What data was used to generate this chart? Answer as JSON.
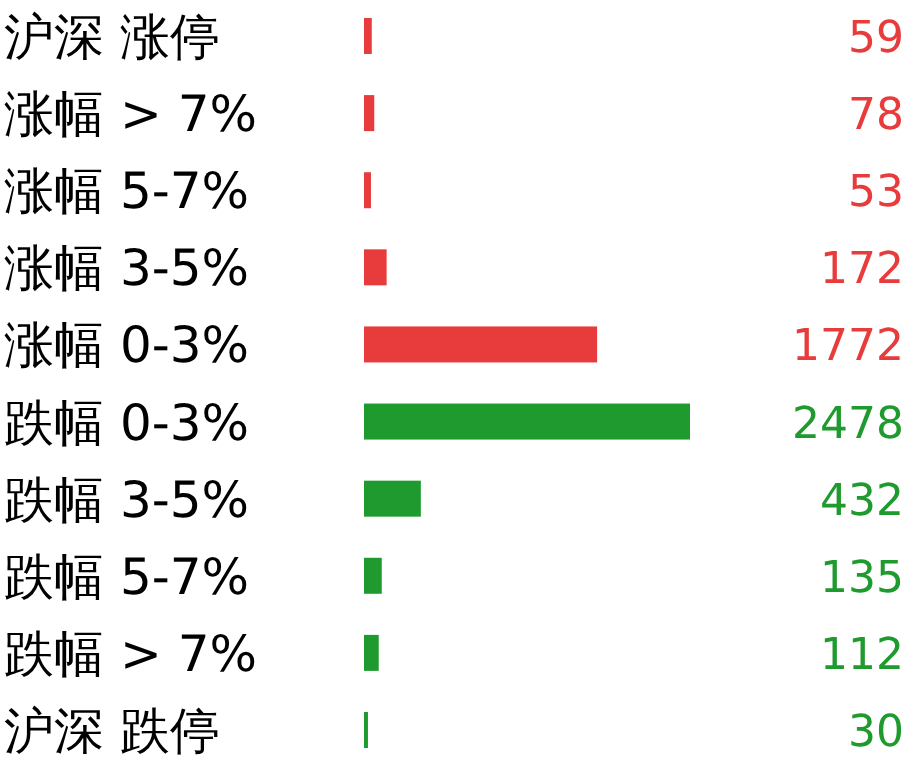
{
  "chart_data": {
    "type": "bar",
    "orientation": "horizontal",
    "categories": [
      "沪深 涨停",
      "涨幅 > 7%",
      "涨幅 5-7%",
      "涨幅 3-5%",
      "涨幅 0-3%",
      "跌幅 0-3%",
      "跌幅 3-5%",
      "跌幅 5-7%",
      "跌幅 > 7%",
      "沪深 跌停"
    ],
    "values": [
      59,
      78,
      53,
      172,
      1772,
      2478,
      432,
      135,
      112,
      30
    ],
    "colors": [
      "#e83b3b",
      "#e83b3b",
      "#e83b3b",
      "#e83b3b",
      "#e83b3b",
      "#1f9a2e",
      "#1f9a2e",
      "#1f9a2e",
      "#1f9a2e",
      "#1f9a2e"
    ],
    "data_labels": true
  }
}
